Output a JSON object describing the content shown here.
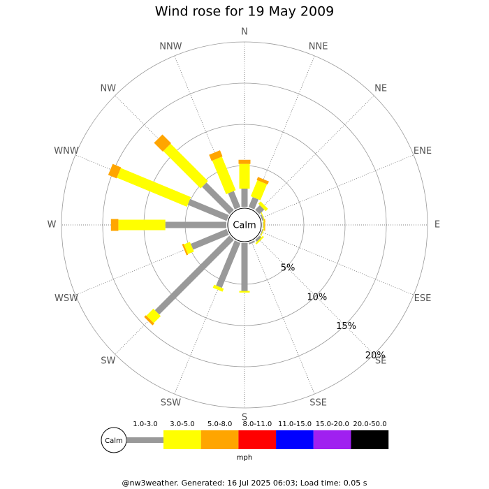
{
  "chart_data": {
    "type": "windrose",
    "title": "Wind rose for 19 May 2009",
    "categories": [
      "N",
      "NNE",
      "NE",
      "ENE",
      "E",
      "ESE",
      "SE",
      "SSE",
      "S",
      "SSW",
      "SW",
      "WSW",
      "W",
      "WNW",
      "NW",
      "NNW"
    ],
    "calm_label": "Calm",
    "legend_title": "mph",
    "footer": "@nw3weather. Generated: 16 Jul 2025 06:03; Load time: 0.05 s",
    "rlim": [
      0,
      20
    ],
    "rticks": [
      {
        "value": 5,
        "label": "5%"
      },
      {
        "value": 10,
        "label": "10%"
      },
      {
        "value": 15,
        "label": "15%"
      },
      {
        "value": 20,
        "label": "20%"
      }
    ],
    "series": [
      {
        "name": "1.0-3.0",
        "color": "#999999",
        "values": [
          2.2,
          1.3,
          0.8,
          0.2,
          0.1,
          0.1,
          0.3,
          0.2,
          5.8,
          5.9,
          12.8,
          4.7,
          7.4,
          5.1,
          4.7,
          2.1
        ]
      },
      {
        "name": "3.0-5.0",
        "color": "#ffff00",
        "values": [
          3.0,
          2.1,
          0.4,
          0.1,
          0.1,
          0.1,
          0.2,
          0,
          0.2,
          0.4,
          1.2,
          0.8,
          5.7,
          9.2,
          6.4,
          4.4
        ]
      },
      {
        "name": "5.0-8.0",
        "color": "#ffa500",
        "values": [
          0.5,
          0.4,
          0,
          0,
          0.1,
          0,
          0,
          0,
          0,
          0,
          0.3,
          0.2,
          0.9,
          1.1,
          1.5,
          0.8
        ]
      },
      {
        "name": "8.0-11.0",
        "color": "#ff0000",
        "values": [
          0,
          0,
          0,
          0,
          0,
          0,
          0,
          0,
          0,
          0,
          0,
          0,
          0,
          0,
          0,
          0
        ]
      },
      {
        "name": "11.0-15.0",
        "color": "#0000ff",
        "values": [
          0,
          0,
          0,
          0,
          0,
          0,
          0,
          0,
          0,
          0,
          0,
          0,
          0,
          0,
          0,
          0
        ]
      },
      {
        "name": "15.0-20.0",
        "color": "#a020f0",
        "values": [
          0,
          0,
          0,
          0,
          0,
          0,
          0,
          0,
          0,
          0,
          0,
          0,
          0,
          0,
          0,
          0
        ]
      },
      {
        "name": "20.0-50.0",
        "color": "#000000",
        "values": [
          0,
          0,
          0,
          0,
          0,
          0,
          0,
          0,
          0,
          0,
          0,
          0,
          0,
          0,
          0,
          0
        ]
      }
    ]
  }
}
